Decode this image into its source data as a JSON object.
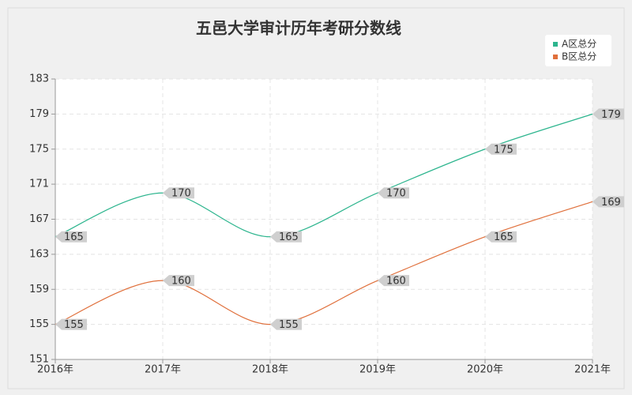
{
  "chart_data": {
    "type": "line",
    "title": "五邑大学审计历年考研分数线",
    "categories": [
      "2016年",
      "2017年",
      "2018年",
      "2019年",
      "2020年",
      "2021年"
    ],
    "series": [
      {
        "name": "A区总分",
        "color": "#2db58e",
        "values": [
          165,
          170,
          165,
          170,
          175,
          179
        ]
      },
      {
        "name": "B区总分",
        "color": "#e0703c",
        "values": [
          155,
          160,
          155,
          160,
          165,
          169
        ]
      }
    ],
    "ylim": [
      151,
      183
    ],
    "yticks": [
      151,
      155,
      159,
      163,
      167,
      171,
      175,
      179,
      183
    ],
    "grid": true,
    "legend": "top-right"
  }
}
